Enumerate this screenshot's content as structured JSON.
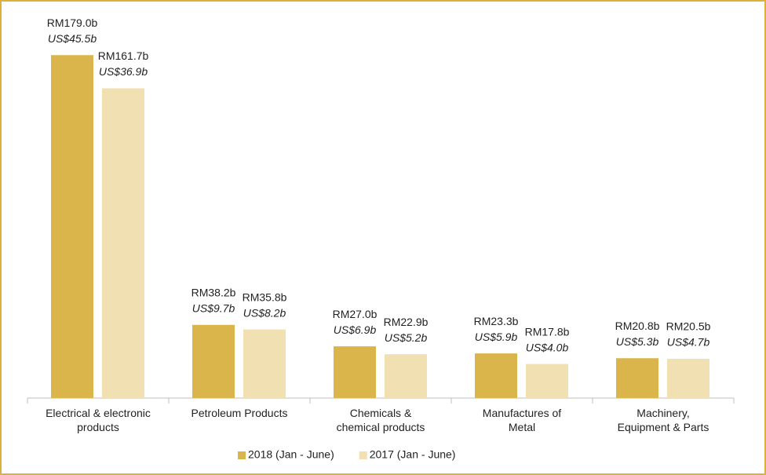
{
  "chart_data": {
    "type": "bar",
    "categories": [
      "Electrical & electronic\nproducts",
      "Petroleum Products",
      "Chemicals &\nchemical products",
      "Manufactures of\nMetal",
      "Machinery,\nEquipment & Parts"
    ],
    "series": [
      {
        "name": "2018 (Jan - June)",
        "color": "#dab54c",
        "values": [
          179.0,
          38.2,
          27.0,
          23.3,
          20.8
        ],
        "value_labels": [
          "RM179.0b",
          "RM38.2b",
          "RM27.0b",
          "RM23.3b",
          "RM20.8b"
        ],
        "usd_values": [
          45.5,
          9.7,
          6.9,
          5.9,
          5.3
        ],
        "usd_labels": [
          "US$45.5b",
          "US$9.7b",
          "US$6.9b",
          "US$5.9b",
          "US$5.3b"
        ]
      },
      {
        "name": "2017 (Jan - June)",
        "color": "#f1e0b2",
        "values": [
          161.7,
          35.8,
          22.9,
          17.8,
          20.5
        ],
        "value_labels": [
          "RM161.7b",
          "RM35.8b",
          "RM22.9b",
          "RM17.8b",
          "RM20.5b"
        ],
        "usd_values": [
          36.9,
          8.2,
          5.2,
          4.0,
          4.7
        ],
        "usd_labels": [
          "US$36.9b",
          "US$8.2b",
          "US$5.2b",
          "US$4.0b",
          "US$4.7b"
        ]
      }
    ],
    "ylim": [
      0,
      200
    ],
    "legend": "bottom"
  }
}
